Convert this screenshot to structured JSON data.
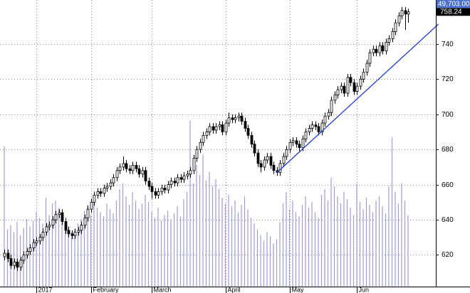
{
  "chart_data": {
    "type": "candlestick",
    "categories": [
      null,
      null,
      null,
      null,
      null,
      null,
      null,
      null,
      null,
      null,
      "2017",
      null,
      null,
      null,
      null,
      null,
      null,
      null,
      null,
      null,
      null,
      null,
      null,
      null,
      null,
      null,
      null,
      "February",
      null,
      null,
      null,
      null,
      null,
      null,
      null,
      null,
      null,
      null,
      null,
      null,
      null,
      null,
      null,
      null,
      null,
      null,
      "March",
      null,
      null,
      null,
      null,
      null,
      null,
      null,
      null,
      null,
      null,
      null,
      null,
      null,
      null,
      null,
      null,
      null,
      null,
      null,
      null,
      null,
      null,
      "April",
      null,
      null,
      null,
      null,
      null,
      null,
      null,
      null,
      null,
      null,
      null,
      null,
      null,
      null,
      null,
      null,
      null,
      null,
      null,
      "May",
      null,
      null,
      null,
      null,
      null,
      null,
      null,
      null,
      null,
      null,
      null,
      null,
      null,
      null,
      null,
      null,
      null,
      null,
      null,
      null,
      "Jun",
      null,
      null,
      null,
      null,
      null,
      null,
      null,
      null,
      null,
      null,
      null,
      null,
      null,
      null,
      null,
      null
    ],
    "open": [
      619,
      621,
      618,
      614,
      616,
      613,
      617,
      620,
      622,
      624,
      627,
      628,
      630,
      633,
      636,
      637,
      640,
      643,
      644,
      639,
      634,
      632,
      631,
      633,
      634,
      637,
      641,
      646,
      650,
      654,
      656,
      655,
      658,
      659,
      661,
      664,
      668,
      670,
      672,
      669,
      668,
      671,
      669,
      666,
      668,
      662,
      659,
      656,
      654,
      656,
      658,
      657,
      660,
      662,
      661,
      664,
      663,
      665,
      666,
      668,
      675,
      680,
      684,
      688,
      690,
      693,
      691,
      693,
      694,
      690,
      695,
      698,
      697,
      698,
      699,
      696,
      692,
      688,
      683,
      678,
      672,
      670,
      674,
      676,
      671,
      668,
      667,
      672,
      676,
      680,
      684,
      685,
      683,
      681,
      686,
      690,
      692,
      694,
      693,
      690,
      695,
      699,
      701,
      708,
      711,
      714,
      716,
      712,
      721,
      718,
      713,
      716,
      720,
      724,
      729,
      735,
      737,
      735,
      739,
      736,
      741,
      743,
      747,
      752,
      756,
      759,
      757
    ],
    "high": [
      623,
      623,
      620,
      618,
      618,
      619,
      622,
      624,
      626,
      629,
      630,
      632,
      635,
      638,
      639,
      642,
      645,
      646,
      646,
      641,
      636,
      634,
      635,
      636,
      639,
      643,
      648,
      652,
      656,
      658,
      658,
      660,
      661,
      663,
      666,
      670,
      672,
      676,
      674,
      671,
      673,
      673,
      671,
      670,
      670,
      664,
      661,
      658,
      658,
      660,
      660,
      662,
      664,
      664,
      666,
      666,
      667,
      668,
      670,
      677,
      682,
      686,
      690,
      692,
      695,
      695,
      695,
      696,
      696,
      697,
      701,
      700,
      700,
      701,
      701,
      698,
      694,
      690,
      685,
      680,
      674,
      676,
      678,
      678,
      673,
      670,
      674,
      678,
      682,
      686,
      687,
      687,
      685,
      688,
      692,
      694,
      696,
      696,
      695,
      697,
      701,
      703,
      710,
      713,
      716,
      718,
      718,
      723,
      723,
      720,
      718,
      722,
      726,
      731,
      737,
      739,
      739,
      741,
      741,
      743,
      745,
      749,
      754,
      758,
      761,
      761,
      760
    ],
    "low": [
      617,
      616,
      612,
      612,
      611,
      611,
      615,
      618,
      620,
      622,
      625,
      626,
      628,
      631,
      634,
      635,
      638,
      641,
      637,
      632,
      630,
      629,
      629,
      631,
      632,
      635,
      639,
      644,
      648,
      652,
      653,
      653,
      656,
      657,
      659,
      662,
      666,
      668,
      667,
      666,
      666,
      667,
      664,
      664,
      660,
      657,
      652,
      652,
      652,
      654,
      655,
      655,
      658,
      659,
      659,
      661,
      661,
      663,
      664,
      666,
      673,
      678,
      682,
      686,
      688,
      689,
      689,
      691,
      688,
      688,
      693,
      695,
      695,
      696,
      694,
      690,
      686,
      681,
      676,
      670,
      667,
      668,
      672,
      669,
      666,
      665,
      665,
      670,
      674,
      678,
      682,
      681,
      679,
      679,
      684,
      688,
      690,
      691,
      688,
      688,
      693,
      697,
      699,
      706,
      709,
      712,
      710,
      710,
      716,
      711,
      711,
      714,
      718,
      722,
      727,
      733,
      733,
      733,
      734,
      734,
      739,
      741,
      745,
      750,
      754,
      748,
      752
    ],
    "close": [
      621,
      618,
      614,
      616,
      613,
      617,
      620,
      622,
      624,
      627,
      628,
      630,
      633,
      636,
      637,
      640,
      643,
      644,
      639,
      634,
      632,
      631,
      633,
      634,
      637,
      641,
      646,
      650,
      654,
      656,
      655,
      658,
      659,
      661,
      664,
      668,
      670,
      672,
      669,
      668,
      671,
      669,
      666,
      668,
      662,
      659,
      656,
      654,
      656,
      658,
      657,
      660,
      662,
      661,
      664,
      663,
      665,
      666,
      668,
      675,
      680,
      684,
      688,
      690,
      693,
      691,
      693,
      694,
      690,
      695,
      698,
      697,
      698,
      699,
      696,
      692,
      688,
      683,
      678,
      672,
      670,
      674,
      676,
      671,
      668,
      667,
      672,
      676,
      680,
      684,
      685,
      683,
      681,
      686,
      690,
      692,
      694,
      693,
      690,
      695,
      699,
      701,
      708,
      711,
      714,
      716,
      712,
      721,
      718,
      713,
      716,
      720,
      724,
      729,
      735,
      737,
      735,
      739,
      736,
      741,
      743,
      747,
      752,
      756,
      759,
      757,
      758.24
    ],
    "volume": [
      98000,
      40000,
      43000,
      38000,
      45000,
      36000,
      41000,
      47000,
      42000,
      46000,
      52000,
      48000,
      44000,
      62000,
      50000,
      58000,
      60000,
      55000,
      49000,
      45000,
      42000,
      38000,
      40000,
      44000,
      47000,
      53000,
      57000,
      50000,
      62000,
      55000,
      52000,
      49000,
      58000,
      54000,
      51000,
      60000,
      68000,
      72000,
      63000,
      57000,
      66000,
      60000,
      54000,
      58000,
      64000,
      59000,
      52000,
      48000,
      55000,
      46000,
      50000,
      53000,
      47000,
      51000,
      56000,
      49000,
      61000,
      66000,
      116000,
      72000,
      85000,
      78000,
      92000,
      74000,
      80000,
      70000,
      75000,
      68000,
      62000,
      58000,
      64000,
      56000,
      60000,
      52000,
      57000,
      63000,
      54000,
      48000,
      44000,
      40000,
      36000,
      32000,
      38000,
      35000,
      30000,
      33000,
      45000,
      58000,
      66000,
      54000,
      60000,
      52000,
      49000,
      57000,
      63000,
      55000,
      59000,
      52000,
      48000,
      64000,
      68000,
      60000,
      76000,
      70000,
      63000,
      58000,
      66000,
      61000,
      55000,
      50000,
      72000,
      59000,
      54000,
      62000,
      57000,
      52000,
      60000,
      63000,
      56000,
      51000,
      70000,
      104000,
      66000,
      58000,
      72000,
      60000,
      49703
    ],
    "last_price_label": "758.24",
    "last_volume_label": "49,703.00",
    "ylim": [
      602,
      765
    ],
    "yticks": [
      620,
      640,
      660,
      680,
      700,
      720,
      740
    ],
    "vlim": [
      0,
      200000
    ],
    "grid": true,
    "up_color": "#ffffff",
    "down_color": "#000000",
    "volume_color": "#9c9cd8",
    "trendline": {
      "x": [
        85,
        135.5
      ],
      "y": [
        666.7,
        751.3
      ],
      "color": "#1a3be0"
    }
  }
}
